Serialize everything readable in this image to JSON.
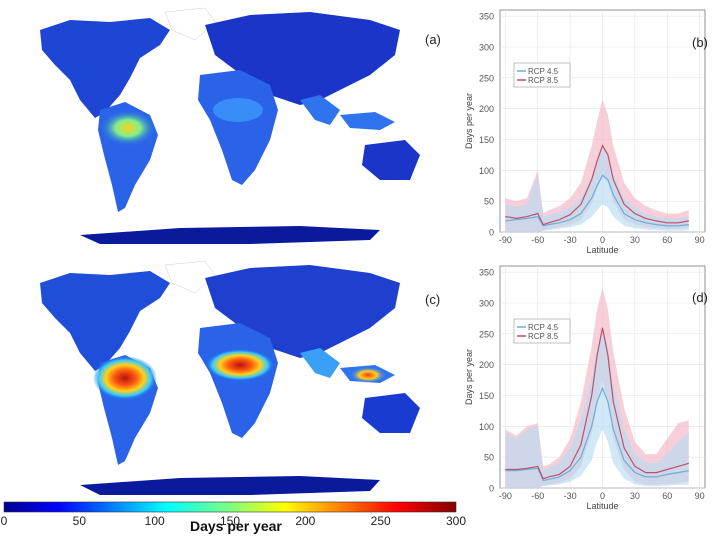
{
  "colors": {
    "rcp45": "#6baed6",
    "rcp45_band": "#b9dcf2",
    "rcp85": "#c0506a",
    "rcp85_band": "#f3b6c4",
    "ocean": "#ffffff",
    "land_low": "#0b1a9c"
  },
  "labels": {
    "a": "(a)",
    "b": "(b)",
    "c": "(c)",
    "d": "(d)"
  },
  "colorbar": {
    "title": "Days per year",
    "ticks": [
      "0",
      "50",
      "100",
      "150",
      "200",
      "250",
      "300"
    ],
    "min": 0,
    "max": 300,
    "colormap": "jet"
  },
  "chart_data": [
    {
      "type": "line",
      "panel": "(b)",
      "xlabel": "Latitude",
      "ylabel": "Days per year",
      "xlim": [
        -95,
        95
      ],
      "ylim": [
        0,
        360
      ],
      "xticks": [
        "-90",
        "-60",
        "-30",
        "0",
        "30",
        "60",
        "90"
      ],
      "yticks": [
        "0",
        "50",
        "100",
        "150",
        "200",
        "250",
        "300",
        "350"
      ],
      "legend": [
        "RCP 4.5",
        "RCP 8.5"
      ],
      "legend_position": "upper-left",
      "x": [
        -90,
        -80,
        -70,
        -60,
        -55,
        -50,
        -40,
        -30,
        -20,
        -10,
        -5,
        0,
        5,
        10,
        20,
        30,
        40,
        50,
        60,
        70,
        80
      ],
      "series": [
        {
          "name": "RCP 4.5",
          "values": [
            18,
            20,
            22,
            25,
            10,
            12,
            15,
            20,
            30,
            55,
            75,
            92,
            85,
            60,
            30,
            20,
            15,
            12,
            10,
            10,
            12
          ],
          "lower": [
            0,
            0,
            0,
            0,
            2,
            3,
            5,
            8,
            12,
            25,
            35,
            45,
            40,
            25,
            10,
            6,
            4,
            3,
            2,
            2,
            3
          ],
          "upper": [
            45,
            40,
            45,
            95,
            25,
            28,
            32,
            40,
            55,
            90,
            120,
            140,
            125,
            95,
            55,
            40,
            30,
            25,
            22,
            22,
            25
          ]
        },
        {
          "name": "RCP 8.5",
          "values": [
            25,
            22,
            25,
            30,
            12,
            15,
            20,
            28,
            45,
            85,
            115,
            140,
            125,
            85,
            45,
            30,
            22,
            18,
            15,
            15,
            18
          ],
          "lower": [
            0,
            0,
            0,
            0,
            3,
            5,
            8,
            12,
            20,
            45,
            70,
            90,
            80,
            50,
            20,
            12,
            8,
            6,
            5,
            5,
            6
          ],
          "upper": [
            55,
            50,
            55,
            100,
            30,
            35,
            42,
            55,
            80,
            140,
            180,
            215,
            190,
            140,
            80,
            55,
            42,
            35,
            30,
            30,
            35
          ]
        }
      ]
    },
    {
      "type": "line",
      "panel": "(d)",
      "xlabel": "Latitude",
      "ylabel": "Days per year",
      "xlim": [
        -95,
        95
      ],
      "ylim": [
        0,
        360
      ],
      "xticks": [
        "-90",
        "-60",
        "-30",
        "0",
        "30",
        "60",
        "90"
      ],
      "yticks": [
        "0",
        "50",
        "100",
        "150",
        "200",
        "250",
        "300",
        "350"
      ],
      "legend": [
        "RCP 4.5",
        "RCP 8.5"
      ],
      "legend_position": "upper-left",
      "x": [
        -90,
        -80,
        -70,
        -60,
        -55,
        -50,
        -40,
        -30,
        -20,
        -10,
        -5,
        0,
        5,
        10,
        20,
        30,
        40,
        50,
        60,
        70,
        80
      ],
      "series": [
        {
          "name": "RCP 4.5",
          "values": [
            28,
            28,
            30,
            32,
            12,
            14,
            18,
            28,
            50,
            100,
            140,
            162,
            140,
            95,
            45,
            25,
            18,
            18,
            22,
            25,
            28
          ],
          "lower": [
            0,
            0,
            0,
            0,
            3,
            4,
            6,
            10,
            20,
            45,
            75,
            95,
            75,
            40,
            15,
            6,
            3,
            3,
            4,
            5,
            5
          ],
          "upper": [
            90,
            80,
            95,
            100,
            30,
            32,
            42,
            65,
            110,
            180,
            230,
            260,
            230,
            170,
            95,
            55,
            42,
            40,
            55,
            75,
            90
          ]
        },
        {
          "name": "RCP 8.5",
          "values": [
            30,
            30,
            32,
            35,
            15,
            18,
            22,
            35,
            70,
            150,
            215,
            260,
            215,
            140,
            65,
            35,
            25,
            25,
            30,
            35,
            40
          ],
          "lower": [
            0,
            0,
            0,
            0,
            4,
            5,
            8,
            15,
            35,
            90,
            140,
            175,
            140,
            80,
            30,
            10,
            5,
            5,
            6,
            8,
            10
          ],
          "upper": [
            95,
            85,
            100,
            105,
            35,
            38,
            50,
            80,
            140,
            230,
            290,
            325,
            290,
            220,
            130,
            75,
            55,
            55,
            80,
            105,
            110
          ]
        }
      ]
    }
  ]
}
